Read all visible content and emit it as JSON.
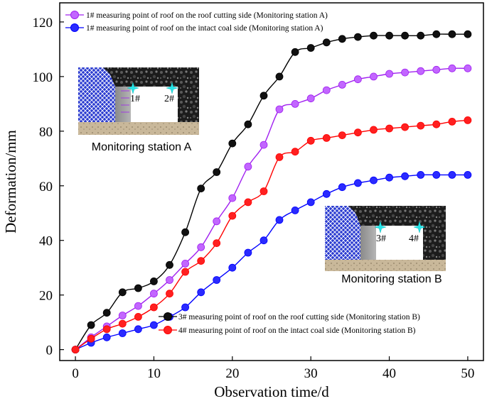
{
  "chart_data": {
    "type": "line",
    "xlabel": "Observation time/d",
    "ylabel": "Deformation/mm",
    "xlim": [
      -2,
      52
    ],
    "ylim": [
      -4,
      127
    ],
    "xticks": [
      0,
      10,
      20,
      30,
      40,
      50
    ],
    "yticks": [
      0,
      20,
      40,
      60,
      80,
      100,
      120
    ],
    "x": [
      0,
      2,
      4,
      6,
      8,
      10,
      12,
      14,
      16,
      18,
      20,
      22,
      24,
      26,
      28,
      30,
      32,
      34,
      36,
      38,
      40,
      42,
      44,
      46,
      48,
      50
    ],
    "series": [
      {
        "name": "1# measuring point of roof on the roof cutting side (Monitoring station A)",
        "color": "#a020f0",
        "fill": "#c266ff",
        "values": [
          0,
          4.5,
          8.5,
          12.5,
          16,
          20.5,
          25.5,
          31.5,
          37.5,
          47,
          55.5,
          67,
          75,
          88,
          90,
          92,
          95,
          97,
          99,
          100,
          101,
          101.5,
          102,
          102.5,
          103,
          103
        ]
      },
      {
        "name": "1# measuring point of roof on the intact coal side (Monitoring station A)",
        "color": "#0000ff",
        "fill": "#2a2aff",
        "values": [
          0,
          2.5,
          4.5,
          6,
          7.5,
          9,
          12,
          15.5,
          21,
          25.5,
          30,
          35.5,
          40,
          47.5,
          51,
          54,
          57,
          59.5,
          61,
          62,
          63,
          63.5,
          64,
          64,
          64,
          64
        ]
      },
      {
        "name": "3# measuring point of roof on the roof cutting side (Monitoring station B)",
        "color": "#000000",
        "fill": "#111111",
        "values": [
          0,
          9,
          13.5,
          21,
          22.5,
          25,
          31,
          43,
          59,
          65,
          75.5,
          82.5,
          93,
          100,
          109,
          110.5,
          112.5,
          113.8,
          114.5,
          115,
          115,
          115,
          115,
          115.5,
          115.5,
          115.5
        ]
      },
      {
        "name": "4# measuring point of roof on the intact coal side (Monitoring station B)",
        "color": "#ff0000",
        "fill": "#ff2020",
        "values": [
          0,
          4,
          7.5,
          9.5,
          12,
          15.5,
          20.5,
          28.5,
          32.5,
          39,
          49,
          54,
          58,
          70.5,
          72.5,
          76.5,
          77.5,
          78.5,
          79.5,
          80.5,
          81,
          81.5,
          82,
          82.5,
          83.5,
          84
        ]
      }
    ],
    "legend_top": [
      "1# measuring point of roof on the roof cutting side (Monitoring station A)",
      "1# measuring point of roof on the intact coal side (Monitoring station A)"
    ],
    "legend_bottom": [
      "3# measuring point of roof on the roof cutting side (Monitoring station B)",
      "4# measuring point of roof on the intact coal side (Monitoring station B)"
    ],
    "insets": [
      {
        "caption": "Monitoring station A",
        "left_label": "1#",
        "right_label": "2#"
      },
      {
        "caption": "Monitoring station B",
        "left_label": "3#",
        "right_label": "4#"
      }
    ]
  }
}
